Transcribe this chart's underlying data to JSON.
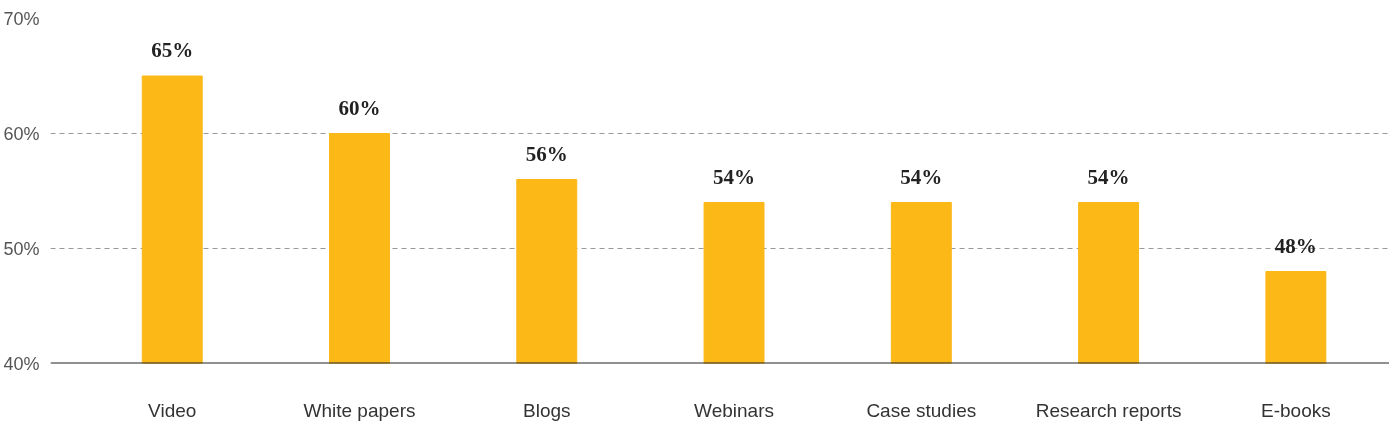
{
  "chart_data": {
    "type": "bar",
    "categories": [
      "Video",
      "White papers",
      "Blogs",
      "Webinars",
      "Case studies",
      "Research reports",
      "E-books"
    ],
    "values": [
      65,
      60,
      56,
      54,
      54,
      54,
      48
    ],
    "value_labels": [
      "65%",
      "60%",
      "56%",
      "54%",
      "54%",
      "54%",
      "48%"
    ],
    "color": "#fbb817",
    "ylim": [
      40,
      70
    ],
    "yticks": [
      {
        "value": 40,
        "label": "40%"
      },
      {
        "value": 50,
        "label": "50%"
      },
      {
        "value": 60,
        "label": "60%"
      },
      {
        "value": 70,
        "label": "70%"
      }
    ],
    "grid": "y"
  }
}
